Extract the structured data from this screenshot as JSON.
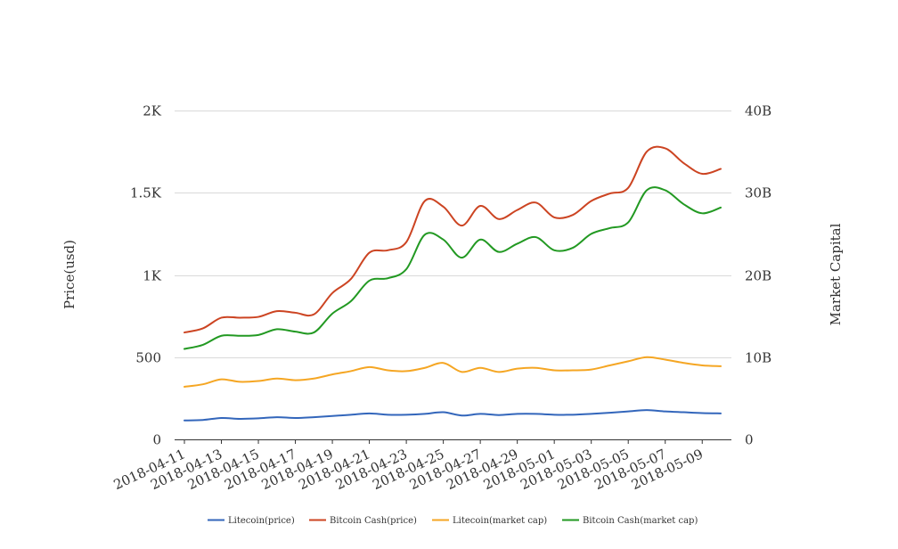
{
  "chart_data": {
    "type": "line",
    "x_dates": [
      "2018-04-11",
      "2018-04-12",
      "2018-04-13",
      "2018-04-14",
      "2018-04-15",
      "2018-04-16",
      "2018-04-17",
      "2018-04-18",
      "2018-04-19",
      "2018-04-20",
      "2018-04-21",
      "2018-04-22",
      "2018-04-23",
      "2018-04-24",
      "2018-04-25",
      "2018-04-26",
      "2018-04-27",
      "2018-04-28",
      "2018-04-29",
      "2018-04-30",
      "2018-05-01",
      "2018-05-02",
      "2018-05-03",
      "2018-05-04",
      "2018-05-05",
      "2018-05-06",
      "2018-05-07",
      "2018-05-08",
      "2018-05-09",
      "2018-05-10"
    ],
    "x_tick_labels": [
      "2018-04-11",
      "2018-04-13",
      "2018-04-15",
      "2018-04-17",
      "2018-04-19",
      "2018-04-21",
      "2018-04-23",
      "2018-04-25",
      "2018-04-27",
      "2018-04-29",
      "2018-05-01",
      "2018-05-03",
      "2018-05-05",
      "2018-05-07",
      "2018-05-09"
    ],
    "y_left": {
      "label": "Price(usd)",
      "ylim": [
        0,
        2000
      ],
      "ticks": [
        0,
        500,
        1000,
        1500,
        2000
      ],
      "tick_labels": [
        "0",
        "500",
        "1K",
        "1.5K",
        "2K"
      ]
    },
    "y_right": {
      "label": "Market Capital",
      "ylim": [
        0,
        40000000000
      ],
      "ticks": [
        0,
        10000000000,
        20000000000,
        30000000000,
        40000000000
      ],
      "tick_labels": [
        "0",
        "10B",
        "20B",
        "30B",
        "40B"
      ]
    },
    "grid": true,
    "legend_position": "bottom",
    "series": [
      {
        "name": "Litecoin(price)",
        "axis": "left",
        "color": "#3366bb",
        "values": [
          115,
          118,
          130,
          125,
          128,
          135,
          130,
          135,
          142,
          150,
          158,
          150,
          150,
          155,
          165,
          145,
          155,
          148,
          155,
          155,
          150,
          150,
          155,
          162,
          170,
          178,
          170,
          165,
          160,
          158
        ]
      },
      {
        "name": "Bitcoin Cash(price)",
        "axis": "right",
        "color": "#cc4422",
        "values": [
          13000000000,
          13500000000,
          14800000000,
          14800000000,
          14900000000,
          15600000000,
          15400000000,
          15200000000,
          17800000000,
          19500000000,
          22700000000,
          23000000000,
          24000000000,
          29000000000,
          28300000000,
          26000000000,
          28400000000,
          26800000000,
          27900000000,
          28800000000,
          27000000000,
          27300000000,
          29000000000,
          29900000000,
          30600000000,
          35000000000,
          35400000000,
          33600000000,
          32300000000,
          32900000000
        ]
      },
      {
        "name": "Litecoin(market cap)",
        "axis": "right",
        "color": "#f5a623",
        "values": [
          6400000000,
          6700000000,
          7300000000,
          7000000000,
          7100000000,
          7400000000,
          7200000000,
          7400000000,
          7900000000,
          8300000000,
          8800000000,
          8400000000,
          8300000000,
          8700000000,
          9300000000,
          8200000000,
          8700000000,
          8200000000,
          8600000000,
          8700000000,
          8400000000,
          8400000000,
          8500000000,
          9000000000,
          9500000000,
          10000000000,
          9700000000,
          9300000000,
          9000000000,
          8900000000
        ]
      },
      {
        "name": "Bitcoin Cash(market cap)",
        "axis": "right",
        "color": "#229922",
        "values": [
          11000000000,
          11500000000,
          12600000000,
          12600000000,
          12700000000,
          13400000000,
          13100000000,
          13000000000,
          15300000000,
          16800000000,
          19300000000,
          19600000000,
          20700000000,
          24900000000,
          24300000000,
          22100000000,
          24300000000,
          22800000000,
          23800000000,
          24600000000,
          23000000000,
          23300000000,
          25000000000,
          25700000000,
          26400000000,
          30300000000,
          30300000000,
          28600000000,
          27500000000,
          28200000000
        ]
      }
    ]
  }
}
